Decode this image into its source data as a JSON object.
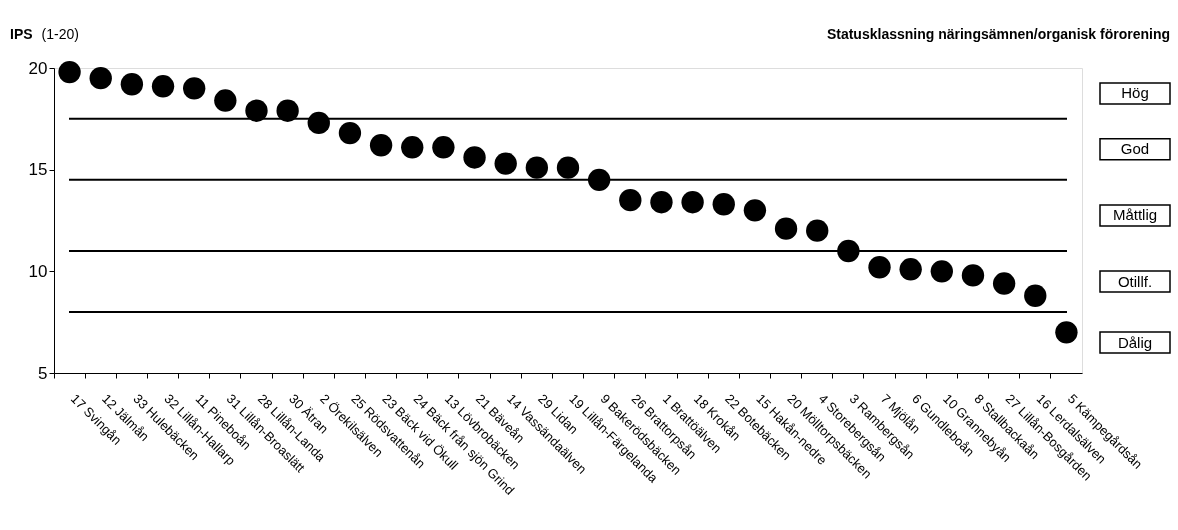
{
  "chart_data": {
    "type": "scatter",
    "title": "Statusklassning näringsämnen/organisk förorening",
    "ylabel": "IPS (1-20)",
    "categories": [
      "17 Svingån",
      "12 Jälmån",
      "33 Hulebäcken",
      "32 Lillån-Hallarp",
      "11 Pineboån",
      "31 Lillån-Broaslätt",
      "28 Lillån-Landa",
      "30 Ätran",
      "2 Örekilsälven",
      "25 Rödsvattenån",
      "23 Bäck vid Ökull",
      "24 Bäck från sjön Grind",
      "13 Lövbrobäcken",
      "21 Bäveån",
      "14 Vassändaälven",
      "29 Lidan",
      "19 Lillån-Färgelanda",
      "9 Bakerödsbäcken",
      "26 Brattorpsån",
      "1 Brattöälven",
      "18 Krokån",
      "22 Botebäcken",
      "15 Hakån-nedre",
      "20 Mölltorpsbäcken",
      "4 Storebergsån",
      "3 Rambergsån",
      "7 Mjölån",
      "6 Gundleboån",
      "10 Grannebyån",
      "8 Stallbackaån",
      "27 Lillån-Bosgården",
      "16 Lerdalsälven",
      "5 Kämpegårdsån"
    ],
    "series": [
      {
        "color": "#000000",
        "values": [
          19.8,
          19.5,
          19.2,
          19.1,
          19.0,
          18.4,
          17.9,
          17.9,
          17.3,
          16.8,
          16.2,
          16.1,
          16.1,
          15.6,
          15.3,
          15.1,
          15.1,
          14.5,
          13.5,
          13.4,
          13.4,
          13.3,
          13.0,
          12.1,
          12.0,
          11.0,
          10.2,
          10.1,
          10.0,
          9.8,
          9.4,
          8.8,
          7.0
        ]
      }
    ],
    "ylim": [
      5,
      20
    ],
    "yticks": [
      5,
      10,
      15,
      20
    ],
    "marker": "circle",
    "grid": false,
    "ref_lines": [
      {
        "axis": "y",
        "value": 17.5
      },
      {
        "axis": "y",
        "value": 14.5
      },
      {
        "axis": "y",
        "value": 11
      },
      {
        "axis": "y",
        "value": 8
      }
    ],
    "annotations": [
      "Hög",
      "God",
      "Måttlig",
      "Otillf.",
      "Dålig"
    ]
  }
}
